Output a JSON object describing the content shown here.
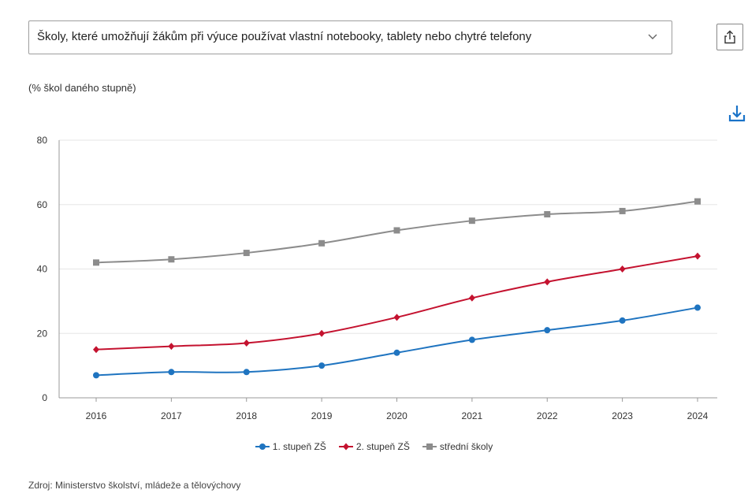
{
  "selector": {
    "value": "Školy, které umožňují žákům při výuce používat vlastní notebooky, tablety nebo chytré telefony"
  },
  "unit_label": "(% škol daného stupně)",
  "source": "Zdroj: Ministerstvo školství, mládeže a tělovýchovy",
  "icons": {
    "share": "share-icon",
    "download": "download-icon",
    "chevron": "chevron-down-icon"
  },
  "colors": {
    "accent": "#1a73c8",
    "grid": "#e6e6e6"
  },
  "chart_data": {
    "type": "line",
    "x": [
      "2016",
      "2017",
      "2018",
      "2019",
      "2020",
      "2021",
      "2022",
      "2023",
      "2024"
    ],
    "ylim": [
      0,
      80
    ],
    "yticks": [
      "0",
      "20",
      "40",
      "60",
      "80"
    ],
    "grid": true,
    "legend_position": "bottom",
    "series": [
      {
        "name": "1. stupeň ZŠ",
        "color": "#1f74c0",
        "marker": "circle",
        "values": [
          7,
          8,
          8,
          10,
          14,
          18,
          21,
          24,
          28
        ]
      },
      {
        "name": "2. stupeň ZŠ",
        "color": "#c4122f",
        "marker": "diamond",
        "values": [
          15,
          16,
          17,
          20,
          25,
          31,
          36,
          40,
          44
        ]
      },
      {
        "name": "střední školy",
        "color": "#8c8c8c",
        "marker": "square",
        "values": [
          42,
          43,
          45,
          48,
          52,
          55,
          57,
          58,
          61
        ]
      }
    ]
  }
}
